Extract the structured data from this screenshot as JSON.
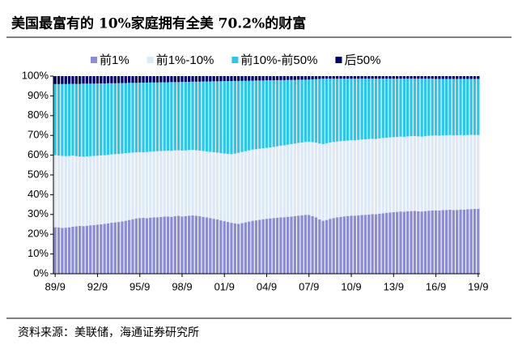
{
  "chart_data": {
    "type": "stacked-bar",
    "title": "美国最富有的 10%家庭拥有全美 70.2%的财富",
    "source": "资料来源：美联储，海通证券研究所",
    "categories": [
      "89/9",
      null,
      null,
      null,
      null,
      null,
      null,
      null,
      null,
      null,
      null,
      null,
      "92/9",
      null,
      null,
      null,
      null,
      null,
      null,
      null,
      null,
      null,
      null,
      null,
      "95/9",
      null,
      null,
      null,
      null,
      null,
      null,
      null,
      null,
      null,
      null,
      null,
      "98/9",
      null,
      null,
      null,
      null,
      null,
      null,
      null,
      null,
      null,
      null,
      null,
      "01/9",
      null,
      null,
      null,
      null,
      null,
      null,
      null,
      null,
      null,
      null,
      null,
      "04/9",
      null,
      null,
      null,
      null,
      null,
      null,
      null,
      null,
      null,
      null,
      null,
      "07/9",
      null,
      null,
      null,
      null,
      null,
      null,
      null,
      null,
      null,
      null,
      null,
      "10/9",
      null,
      null,
      null,
      null,
      null,
      null,
      null,
      null,
      null,
      null,
      null,
      "13/9",
      null,
      null,
      null,
      null,
      null,
      null,
      null,
      null,
      null,
      null,
      null,
      "16/9",
      null,
      null,
      null,
      null,
      null,
      null,
      null,
      null,
      null,
      null,
      null,
      "19/9"
    ],
    "series": [
      {
        "name": "前1%",
        "color": "#8c8cd2",
        "values": [
          23.5,
          23.4,
          23.2,
          23.3,
          23.5,
          23.8,
          24.0,
          24.2,
          24.1,
          24.3,
          24.5,
          24.6,
          24.8,
          25.0,
          25.2,
          25.5,
          25.8,
          26.0,
          26.2,
          26.5,
          26.8,
          27.2,
          27.6,
          28.0,
          28.2,
          28.3,
          28.1,
          28.4,
          28.6,
          28.5,
          28.7,
          28.9,
          29.0,
          28.8,
          29.1,
          29.3,
          29.0,
          29.2,
          29.4,
          29.5,
          29.3,
          29.1,
          28.8,
          28.5,
          28.2,
          27.8,
          27.5,
          27.0,
          26.6,
          26.2,
          25.8,
          25.5,
          25.2,
          25.6,
          26.0,
          26.4,
          26.8,
          27.0,
          27.3,
          27.6,
          27.8,
          28.0,
          28.2,
          28.3,
          28.5,
          28.6,
          28.8,
          29.0,
          29.2,
          29.4,
          29.6,
          29.8,
          29.7,
          29.2,
          28.5,
          27.5,
          26.8,
          27.2,
          27.8,
          28.2,
          28.5,
          28.8,
          29.0,
          29.2,
          29.4,
          29.3,
          29.5,
          29.7,
          29.8,
          30.0,
          30.2,
          30.1,
          30.4,
          30.6,
          30.8,
          31.0,
          31.2,
          31.3,
          31.5,
          31.4,
          31.6,
          31.7,
          31.8,
          31.6,
          31.5,
          31.7,
          31.9,
          32.0,
          32.1,
          32.0,
          32.2,
          32.3,
          32.4,
          32.2,
          32.3,
          32.5,
          32.4,
          32.6,
          32.7,
          32.8,
          32.9
        ]
      },
      {
        "name": "前1%-10%",
        "color": "#dde9f6",
        "values": [
          36.5,
          36.4,
          36.4,
          36.2,
          36.1,
          36.0,
          35.5,
          35.1,
          35.1,
          35.1,
          35.0,
          35.0,
          34.9,
          34.9,
          34.8,
          34.7,
          34.6,
          34.5,
          34.4,
          34.3,
          34.2,
          34.0,
          33.7,
          33.4,
          33.3,
          33.1,
          33.5,
          33.4,
          33.3,
          33.5,
          33.4,
          33.3,
          33.3,
          33.4,
          33.3,
          33.2,
          33.3,
          33.2,
          33.2,
          33.2,
          33.2,
          33.2,
          33.3,
          33.4,
          33.5,
          33.7,
          33.8,
          34.0,
          34.2,
          34.4,
          34.7,
          35.3,
          36.0,
          36.0,
          36.0,
          36.0,
          36.0,
          36.0,
          36.0,
          35.9,
          35.9,
          35.9,
          36.0,
          36.2,
          36.3,
          36.4,
          36.5,
          36.6,
          36.7,
          36.8,
          36.8,
          36.9,
          37.1,
          37.4,
          37.8,
          38.4,
          38.8,
          38.8,
          38.6,
          38.5,
          38.4,
          38.3,
          38.2,
          38.2,
          38.2,
          38.2,
          38.2,
          38.2,
          38.2,
          38.2,
          38.1,
          38.1,
          38.1,
          38.1,
          38.0,
          38.0,
          37.9,
          37.9,
          37.9,
          37.9,
          37.9,
          37.9,
          37.9,
          37.9,
          37.9,
          37.9,
          37.9,
          37.9,
          37.9,
          37.9,
          37.8,
          37.8,
          37.8,
          37.8,
          37.8,
          37.7,
          37.7,
          37.6,
          37.6,
          37.4,
          37.3
        ]
      },
      {
        "name": "前10%-前50%",
        "color": "#2ec6e6",
        "values": [
          36.0,
          36.2,
          36.4,
          36.5,
          36.5,
          36.3,
          36.6,
          36.8,
          37.0,
          36.8,
          36.7,
          36.6,
          36.6,
          36.4,
          36.3,
          36.2,
          36.0,
          35.9,
          35.9,
          35.7,
          35.5,
          35.4,
          35.3,
          35.2,
          35.2,
          35.3,
          35.1,
          35.0,
          34.9,
          34.8,
          34.8,
          34.7,
          34.6,
          34.8,
          34.6,
          34.5,
          34.8,
          34.7,
          34.5,
          34.5,
          34.7,
          34.9,
          35.2,
          35.4,
          35.6,
          35.9,
          36.1,
          36.4,
          36.7,
          36.9,
          37.0,
          36.8,
          36.4,
          36.0,
          35.7,
          35.3,
          34.9,
          34.8,
          34.5,
          34.3,
          34.2,
          34.0,
          33.7,
          33.5,
          33.2,
          33.0,
          32.8,
          32.5,
          32.2,
          32.0,
          31.8,
          31.5,
          31.5,
          31.8,
          32.2,
          32.7,
          33.1,
          32.7,
          32.3,
          32.0,
          31.8,
          31.6,
          31.5,
          31.3,
          31.1,
          31.2,
          31.0,
          30.8,
          30.7,
          30.5,
          30.4,
          30.5,
          30.2,
          30.0,
          29.9,
          29.7,
          29.6,
          29.5,
          29.3,
          29.4,
          29.2,
          29.1,
          29.0,
          29.2,
          29.3,
          29.1,
          28.9,
          28.8,
          28.6,
          28.7,
          28.6,
          28.5,
          28.4,
          28.6,
          28.5,
          28.4,
          28.5,
          28.4,
          28.3,
          28.4,
          28.4
        ]
      },
      {
        "name": "后50%",
        "color": "#000066",
        "values": [
          4.0,
          4.0,
          4.0,
          4.0,
          3.9,
          3.9,
          3.9,
          3.9,
          3.8,
          3.8,
          3.8,
          3.8,
          3.7,
          3.7,
          3.7,
          3.6,
          3.6,
          3.6,
          3.5,
          3.5,
          3.5,
          3.4,
          3.4,
          3.4,
          3.3,
          3.3,
          3.3,
          3.2,
          3.2,
          3.2,
          3.1,
          3.1,
          3.1,
          3.0,
          3.0,
          3.0,
          2.9,
          2.9,
          2.9,
          2.8,
          2.8,
          2.8,
          2.7,
          2.7,
          2.7,
          2.6,
          2.6,
          2.6,
          2.5,
          2.5,
          2.5,
          2.4,
          2.4,
          2.4,
          2.3,
          2.3,
          2.3,
          2.2,
          2.2,
          2.2,
          2.1,
          2.1,
          2.1,
          2.0,
          2.0,
          2.0,
          1.9,
          1.9,
          1.9,
          1.8,
          1.8,
          1.8,
          1.7,
          1.6,
          1.5,
          1.4,
          1.3,
          1.3,
          1.3,
          1.3,
          1.3,
          1.3,
          1.3,
          1.3,
          1.3,
          1.3,
          1.3,
          1.3,
          1.3,
          1.3,
          1.3,
          1.3,
          1.3,
          1.3,
          1.3,
          1.3,
          1.3,
          1.3,
          1.3,
          1.3,
          1.3,
          1.3,
          1.3,
          1.3,
          1.3,
          1.3,
          1.3,
          1.3,
          1.4,
          1.4,
          1.4,
          1.4,
          1.4,
          1.4,
          1.4,
          1.4,
          1.4,
          1.4,
          1.4,
          1.4,
          1.4
        ]
      }
    ],
    "ylim": [
      0,
      100
    ],
    "yticks": [
      {
        "value": 0,
        "label": "0%"
      },
      {
        "value": 10,
        "label": "10%"
      },
      {
        "value": 20,
        "label": "20%"
      },
      {
        "value": 30,
        "label": "30%"
      },
      {
        "value": 40,
        "label": "40%"
      },
      {
        "value": 50,
        "label": "50%"
      },
      {
        "value": 60,
        "label": "60%"
      },
      {
        "value": 70,
        "label": "70%"
      },
      {
        "value": 80,
        "label": "80%"
      },
      {
        "value": 90,
        "label": "90%"
      },
      {
        "value": 100,
        "label": "100%"
      }
    ],
    "legend": "top"
  }
}
